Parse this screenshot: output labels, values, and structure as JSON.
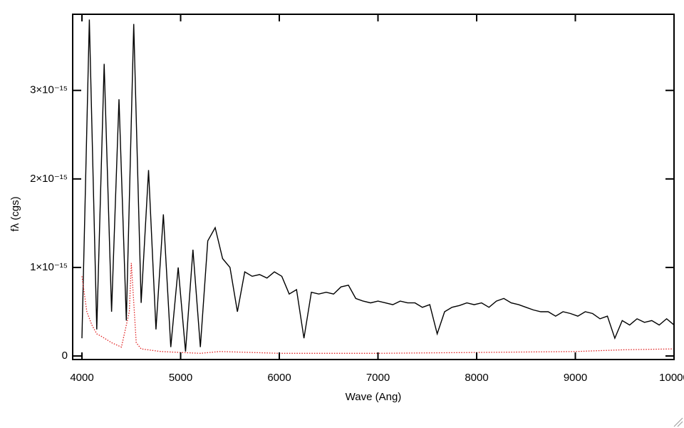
{
  "chart_data": {
    "type": "line",
    "x_label": "Wave (Ang)",
    "y_label": "fλ (cgs)",
    "xlim": [
      3906,
      10000
    ],
    "ylim": [
      -4e-17,
      3.86e-15
    ],
    "xticks": [
      4000,
      5000,
      6000,
      7000,
      8000,
      9000,
      10000
    ],
    "yticks": [
      0,
      {
        "value": 1e-15,
        "label": "1×10⁻¹⁵"
      },
      {
        "value": 2e-15,
        "label": "2×10⁻¹⁵"
      },
      {
        "value": 3e-15,
        "label": "3×10⁻¹⁵"
      }
    ],
    "series": [
      {
        "color": "#000000",
        "style": "solid",
        "x": [
          4000,
          4075,
          4150,
          4225,
          4300,
          4375,
          4450,
          4525,
          4600,
          4675,
          4750,
          4825,
          4900,
          4975,
          5050,
          5125,
          5200,
          5275,
          5350,
          5425,
          5500,
          5575,
          5650,
          5725,
          5800,
          5875,
          5950,
          6025,
          6100,
          6175,
          6250,
          6325,
          6400,
          6475,
          6550,
          6625,
          6700,
          6775,
          6850,
          6925,
          7000,
          7075,
          7150,
          7225,
          7300,
          7375,
          7450,
          7525,
          7600,
          7675,
          7750,
          7825,
          7900,
          7975,
          8050,
          8125,
          8200,
          8275,
          8350,
          8425,
          8500,
          8575,
          8650,
          8725,
          8800,
          8875,
          8950,
          9025,
          9100,
          9175,
          9250,
          9325,
          9400,
          9475,
          9550,
          9625,
          9700,
          9775,
          9850,
          9925,
          10000
        ],
        "values": [
          2e-16,
          3.8e-15,
          3e-16,
          3.3e-15,
          5e-16,
          2.9e-15,
          4e-16,
          3.75e-15,
          6e-16,
          2.1e-15,
          3e-16,
          1.6e-15,
          1e-16,
          1e-15,
          5e-17,
          1.2e-15,
          1e-16,
          1.3e-15,
          1.45e-15,
          1.1e-15,
          1e-15,
          5e-16,
          9.5e-16,
          9e-16,
          9.2e-16,
          8.8e-16,
          9.5e-16,
          9e-16,
          7e-16,
          7.5e-16,
          2e-16,
          7.2e-16,
          7e-16,
          7.2e-16,
          7e-16,
          7.8e-16,
          8e-16,
          6.5e-16,
          6.2e-16,
          6e-16,
          6.2e-16,
          6e-16,
          5.8e-16,
          6.2e-16,
          6e-16,
          6e-16,
          5.5e-16,
          5.8e-16,
          2.5e-16,
          5e-16,
          5.5e-16,
          5.7e-16,
          6e-16,
          5.8e-16,
          6e-16,
          5.5e-16,
          6.2e-16,
          6.5e-16,
          6e-16,
          5.8e-16,
          5.5e-16,
          5.2e-16,
          5e-16,
          5e-16,
          4.5e-16,
          5e-16,
          4.8e-16,
          4.5e-16,
          5e-16,
          4.8e-16,
          4.2e-16,
          4.5e-16,
          2e-16,
          4e-16,
          3.5e-16,
          4.2e-16,
          3.8e-16,
          4e-16,
          3.5e-16,
          4.2e-16,
          3.5e-16
        ]
      },
      {
        "color": "#e02020",
        "style": "dotted",
        "x": [
          4000,
          4050,
          4100,
          4150,
          4200,
          4300,
          4400,
          4480,
          4500,
          4550,
          4600,
          4800,
          5000,
          5200,
          5400,
          6000,
          7000,
          8000,
          9000,
          9500,
          10000
        ],
        "values": [
          9e-16,
          5e-16,
          3.5e-16,
          2.5e-16,
          2.2e-16,
          1.5e-16,
          1e-16,
          5e-16,
          1.05e-15,
          1.5e-16,
          8e-17,
          5e-17,
          4e-17,
          3e-17,
          5e-17,
          3e-17,
          3e-17,
          4e-17,
          5e-17,
          7e-17,
          8e-17
        ]
      }
    ]
  }
}
